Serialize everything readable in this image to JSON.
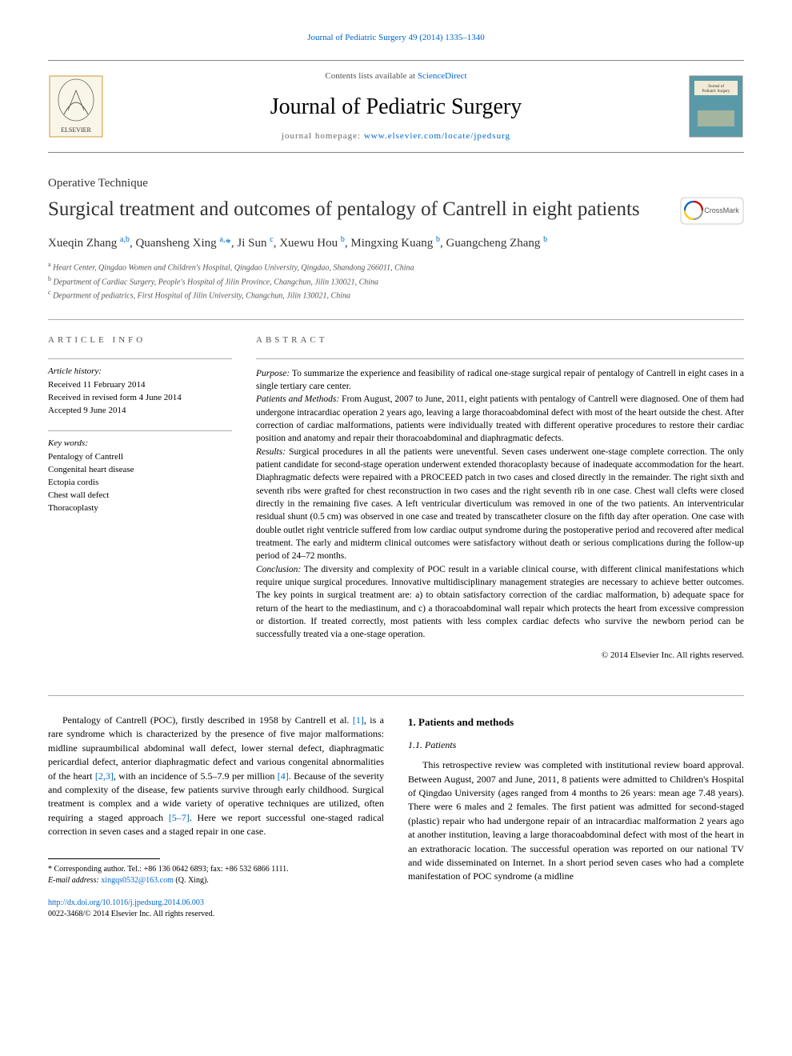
{
  "top_link": {
    "prefix": "",
    "text": "Journal of Pediatric Surgery 49 (2014) 1335–1340"
  },
  "header": {
    "contents_prefix": "Contents lists available at ",
    "contents_link": "ScienceDirect",
    "journal_name": "Journal of Pediatric Surgery",
    "homepage_prefix": "journal homepage: ",
    "homepage_link": "www.elsevier.com/locate/jpedsurg"
  },
  "article_type": "Operative Technique",
  "title": "Surgical treatment and outcomes of pentalogy of Cantrell in eight patients",
  "authors_html": "Xueqin Zhang <sup>a,b</sup>, Quansheng Xing <sup>a,</sup><span class='asterisk'>*</span>, Ji Sun <sup>c</sup>, Xuewu Hou <sup>b</sup>, Mingxing Kuang <sup>b</sup>, Guangcheng Zhang <sup>b</sup>",
  "affiliations": [
    {
      "sup": "a",
      "text": "Heart Center, Qingdao Women and Children's Hospital, Qingdao University, Qingdao, Shandong 266011, China"
    },
    {
      "sup": "b",
      "text": "Department of Cardiac Surgery, People's Hospital of Jilin Province, Changchun, Jilin 130021, China"
    },
    {
      "sup": "c",
      "text": "Department of pediatrics, First Hospital of Jilin University, Changchun, Jilin 130021, China"
    }
  ],
  "article_info": {
    "label": "ARTICLE INFO",
    "history_label": "Article history:",
    "history": [
      "Received 11 February 2014",
      "Received in revised form 4 June 2014",
      "Accepted 9 June 2014"
    ],
    "keywords_label": "Key words:",
    "keywords": [
      "Pentalogy of Cantrell",
      "Congenital heart disease",
      "Ectopia cordis",
      "Chest wall defect",
      "Thoracoplasty"
    ]
  },
  "abstract": {
    "label": "ABSTRACT",
    "sections": [
      {
        "label": "Purpose:",
        "text": "To summarize the experience and feasibility of radical one-stage surgical repair of pentalogy of Cantrell in eight cases in a single tertiary care center."
      },
      {
        "label": "Patients and Methods:",
        "text": "From August, 2007 to June, 2011, eight patients with pentalogy of Cantrell were diagnosed. One of them had undergone intracardiac operation 2 years ago, leaving a large thoracoabdominal defect with most of the heart outside the chest. After correction of cardiac malformations, patients were individually treated with different operative procedures to restore their cardiac position and anatomy and repair their thoracoabdominal and diaphragmatic defects."
      },
      {
        "label": "Results:",
        "text": "Surgical procedures in all the patients were uneventful. Seven cases underwent one-stage complete correction. The only patient candidate for second-stage operation underwent extended thoracoplasty because of inadequate accommodation for the heart. Diaphragmatic defects were repaired with a PROCEED patch in two cases and closed directly in the remainder. The right sixth and seventh ribs were grafted for chest reconstruction in two cases and the right seventh rib in one case. Chest wall clefts were closed directly in the remaining five cases. A left ventricular diverticulum was removed in one of the two patients. An interventricular residual shunt (0.5 cm) was observed in one case and treated by transcatheter closure on the fifth day after operation. One case with double outlet right ventricle suffered from low cardiac output syndrome during the postoperative period and recovered after medical treatment. The early and midterm clinical outcomes were satisfactory without death or serious complications during the follow-up period of 24–72 months."
      },
      {
        "label": "Conclusion:",
        "text": "The diversity and complexity of POC result in a variable clinical course, with different clinical manifestations which require unique surgical procedures. Innovative multidisciplinary management strategies are necessary to achieve better outcomes. The key points in surgical treatment are: a) to obtain satisfactory correction of the cardiac malformation, b) adequate space for return of the heart to the mediastinum, and c) a thoracoabdominal wall repair which protects the heart from excessive compression or distortion. If treated correctly, most patients with less complex cardiac defects who survive the newborn period can be successfully treated via a one-stage operation."
      }
    ],
    "copyright": "© 2014 Elsevier Inc. All rights reserved."
  },
  "body": {
    "left": "Pentalogy of Cantrell (POC), firstly described in 1958 by Cantrell et al. <span class='cite'>[1]</span>, is a rare syndrome which is characterized by the presence of five major malformations: midline supraumbilical abdominal wall defect, lower sternal defect, diaphragmatic pericardial defect, anterior diaphragmatic defect and various congenital abnormalities of the heart <span class='cite'>[2,3]</span>, with an incidence of 5.5–7.9 per million <span class='cite'>[4]</span>. Because of the severity and complexity of the disease, few patients survive through early childhood. Surgical treatment is complex and a wide variety of operative techniques are utilized, often requiring a staged approach <span class='cite'>[5–7]</span>. Here we report successful one-staged radical correction in seven cases and a staged repair in one case.",
    "right": {
      "heading": "1. Patients and methods",
      "subheading": "1.1. Patients",
      "text": "This retrospective review was completed with institutional review board approval. Between August, 2007 and June, 2011, 8 patients were admitted to Children's Hospital of Qingdao University (ages ranged from 4 months to 26 years: mean age 7.48 years). There were 6 males and 2 females. The first patient was admitted for second-staged (plastic) repair who had undergone repair of an intracardiac malformation 2 years ago at another institution, leaving a large thoracoabdominal defect with most of the heart in an extrathoracic location. The successful operation was reported on our national TV and wide disseminated on Internet. In a short period seven cases who had a complete manifestation of POC syndrome (a midline"
    }
  },
  "footnote": {
    "corr_label": "* Corresponding author. Tel.: +86 136 0642 6893; fax: +86 532 6866 1111.",
    "email_label": "E-mail address:",
    "email": "xingqs0532@163.com",
    "email_suffix": "(Q. Xing)."
  },
  "footer": {
    "doi": "http://dx.doi.org/10.1016/j.jpedsurg.2014.06.003",
    "issn": "0022-3468/© 2014 Elsevier Inc. All rights reserved."
  },
  "colors": {
    "link": "#0066cc",
    "text": "#000000",
    "muted": "#555555",
    "border": "#888888",
    "elsevier_orange": "#ff6600",
    "elsevier_bg": "#f9f5e8",
    "journal_cover_bg": "#5a9aa8",
    "crossmark_ring": "#cc0000"
  }
}
